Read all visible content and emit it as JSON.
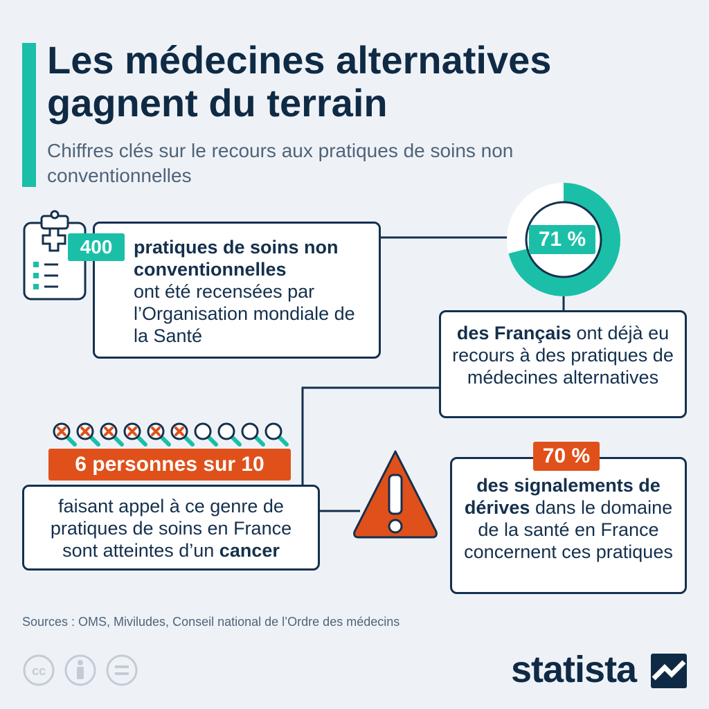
{
  "header": {
    "title": "Les médecines alternatives gagnent du terrain",
    "subtitle": "Chiffres clés sur le recours aux pratiques de soins non conventionnelles"
  },
  "stat_oms": {
    "value": "400",
    "bold": "pratiques de soins non conventionnelles",
    "rest": "ont été recensées par l’Organisation mondiale de la Santé",
    "icon": "clipboard-medical-icon"
  },
  "stat_francais": {
    "value": "71 %",
    "share": 0.71,
    "bold": "des Français",
    "rest": "ont déjà eu recours à des pratiques de médecines alternatives"
  },
  "stat_cancer": {
    "value": "6 personnes sur 10",
    "marked": 6,
    "total": 10,
    "text_before": "faisant appel à ce genre de pratiques de soins en France sont atteintes d’un",
    "bold": "cancer",
    "icon": "magnifier-icon"
  },
  "stat_derives": {
    "value": "70 %",
    "bold": "des signalements de dérives",
    "rest": "dans le domaine de la santé en France concernent ces pratiques",
    "icon": "warning-icon"
  },
  "footer": {
    "sources": "Sources : OMS, Miviludes, Conseil national de l’Ordre des médecins",
    "brand": "statista",
    "license_icons": [
      "cc-icon",
      "attribution-icon",
      "no-derivatives-icon"
    ]
  },
  "colors": {
    "navy": "#14304d",
    "teal": "#1bbfa8",
    "orange": "#e0501a",
    "background": "#eef2f7"
  }
}
